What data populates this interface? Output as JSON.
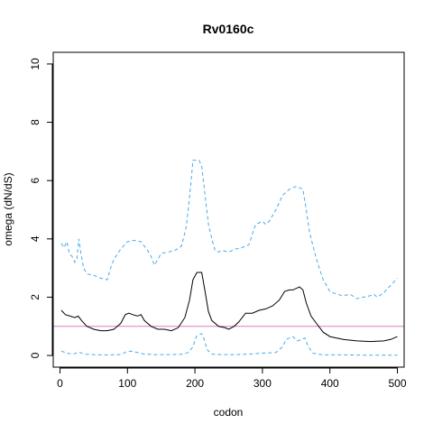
{
  "chart_data": {
    "type": "line",
    "title": "Rv0160c",
    "xlabel": "codon",
    "ylabel": "omega (dN/dS)",
    "xlim": [
      -10,
      510
    ],
    "ylim": [
      -0.4,
      10.4
    ],
    "xticks": [
      0,
      100,
      200,
      300,
      400,
      500
    ],
    "xtick_labels": [
      "0",
      "100",
      "200",
      "300",
      "400",
      "500"
    ],
    "yticks": [
      0,
      2,
      4,
      6,
      8,
      10
    ],
    "ytick_labels": [
      "0",
      "2",
      "4",
      "6",
      "8",
      "10"
    ],
    "grid": false,
    "reference_line": {
      "y": 1,
      "color": "#d87bc0"
    },
    "series": [
      {
        "role": "upper",
        "color": "#4ba9e8",
        "dash": true,
        "points": [
          [
            2,
            3.85
          ],
          [
            6,
            3.7
          ],
          [
            10,
            3.9
          ],
          [
            14,
            3.5
          ],
          [
            18,
            3.4
          ],
          [
            22,
            3.2
          ],
          [
            25,
            3.3
          ],
          [
            28,
            4.0
          ],
          [
            31,
            3.5
          ],
          [
            35,
            3.0
          ],
          [
            40,
            2.8
          ],
          [
            50,
            2.75
          ],
          [
            60,
            2.65
          ],
          [
            70,
            2.6
          ],
          [
            75,
            3.0
          ],
          [
            80,
            3.3
          ],
          [
            90,
            3.65
          ],
          [
            100,
            3.9
          ],
          [
            110,
            3.95
          ],
          [
            120,
            3.9
          ],
          [
            130,
            3.6
          ],
          [
            135,
            3.4
          ],
          [
            140,
            3.1
          ],
          [
            145,
            3.3
          ],
          [
            150,
            3.5
          ],
          [
            160,
            3.55
          ],
          [
            170,
            3.6
          ],
          [
            180,
            3.75
          ],
          [
            187,
            4.4
          ],
          [
            192,
            5.4
          ],
          [
            197,
            6.7
          ],
          [
            206,
            6.7
          ],
          [
            210,
            6.5
          ],
          [
            215,
            5.5
          ],
          [
            220,
            4.5
          ],
          [
            225,
            4.0
          ],
          [
            230,
            3.6
          ],
          [
            235,
            3.55
          ],
          [
            240,
            3.6
          ],
          [
            250,
            3.55
          ],
          [
            260,
            3.65
          ],
          [
            270,
            3.7
          ],
          [
            280,
            3.8
          ],
          [
            290,
            4.5
          ],
          [
            300,
            4.6
          ],
          [
            305,
            4.5
          ],
          [
            310,
            4.6
          ],
          [
            320,
            5.0
          ],
          [
            330,
            5.5
          ],
          [
            340,
            5.7
          ],
          [
            350,
            5.8
          ],
          [
            360,
            5.7
          ],
          [
            365,
            5.0
          ],
          [
            370,
            4.2
          ],
          [
            380,
            3.3
          ],
          [
            390,
            2.6
          ],
          [
            400,
            2.2
          ],
          [
            410,
            2.1
          ],
          [
            420,
            2.05
          ],
          [
            430,
            2.1
          ],
          [
            440,
            1.95
          ],
          [
            450,
            2.0
          ],
          [
            460,
            2.05
          ],
          [
            465,
            2.1
          ],
          [
            470,
            2.0
          ],
          [
            480,
            2.15
          ],
          [
            485,
            2.3
          ],
          [
            490,
            2.4
          ],
          [
            500,
            2.65
          ]
        ]
      },
      {
        "role": "estimate",
        "color": "#000000",
        "dash": false,
        "points": [
          [
            2,
            1.55
          ],
          [
            8,
            1.4
          ],
          [
            15,
            1.35
          ],
          [
            22,
            1.3
          ],
          [
            27,
            1.35
          ],
          [
            32,
            1.2
          ],
          [
            40,
            1.0
          ],
          [
            50,
            0.9
          ],
          [
            60,
            0.85
          ],
          [
            70,
            0.85
          ],
          [
            80,
            0.9
          ],
          [
            90,
            1.1
          ],
          [
            97,
            1.4
          ],
          [
            102,
            1.45
          ],
          [
            108,
            1.4
          ],
          [
            115,
            1.35
          ],
          [
            120,
            1.4
          ],
          [
            125,
            1.2
          ],
          [
            135,
            1.0
          ],
          [
            145,
            0.9
          ],
          [
            155,
            0.9
          ],
          [
            165,
            0.85
          ],
          [
            175,
            0.95
          ],
          [
            185,
            1.3
          ],
          [
            192,
            1.9
          ],
          [
            197,
            2.6
          ],
          [
            203,
            2.85
          ],
          [
            210,
            2.85
          ],
          [
            215,
            2.2
          ],
          [
            220,
            1.5
          ],
          [
            225,
            1.2
          ],
          [
            235,
            1.0
          ],
          [
            245,
            0.95
          ],
          [
            250,
            0.9
          ],
          [
            258,
            1.0
          ],
          [
            265,
            1.15
          ],
          [
            275,
            1.45
          ],
          [
            285,
            1.45
          ],
          [
            295,
            1.55
          ],
          [
            305,
            1.6
          ],
          [
            315,
            1.7
          ],
          [
            325,
            1.9
          ],
          [
            333,
            2.2
          ],
          [
            340,
            2.25
          ],
          [
            345,
            2.25
          ],
          [
            355,
            2.35
          ],
          [
            360,
            2.25
          ],
          [
            365,
            1.8
          ],
          [
            372,
            1.35
          ],
          [
            380,
            1.1
          ],
          [
            390,
            0.8
          ],
          [
            400,
            0.65
          ],
          [
            410,
            0.6
          ],
          [
            420,
            0.55
          ],
          [
            440,
            0.5
          ],
          [
            460,
            0.48
          ],
          [
            480,
            0.5
          ],
          [
            490,
            0.55
          ],
          [
            500,
            0.65
          ]
        ]
      },
      {
        "role": "lower",
        "color": "#4ba9e8",
        "dash": true,
        "points": [
          [
            2,
            0.15
          ],
          [
            10,
            0.08
          ],
          [
            20,
            0.05
          ],
          [
            28,
            0.12
          ],
          [
            35,
            0.05
          ],
          [
            50,
            0.03
          ],
          [
            70,
            0.02
          ],
          [
            90,
            0.03
          ],
          [
            98,
            0.12
          ],
          [
            105,
            0.15
          ],
          [
            115,
            0.1
          ],
          [
            125,
            0.05
          ],
          [
            140,
            0.03
          ],
          [
            160,
            0.03
          ],
          [
            180,
            0.04
          ],
          [
            190,
            0.1
          ],
          [
            197,
            0.3
          ],
          [
            202,
            0.65
          ],
          [
            210,
            0.75
          ],
          [
            213,
            0.6
          ],
          [
            218,
            0.2
          ],
          [
            225,
            0.05
          ],
          [
            240,
            0.03
          ],
          [
            260,
            0.03
          ],
          [
            280,
            0.05
          ],
          [
            300,
            0.08
          ],
          [
            320,
            0.1
          ],
          [
            330,
            0.3
          ],
          [
            335,
            0.55
          ],
          [
            345,
            0.65
          ],
          [
            352,
            0.5
          ],
          [
            358,
            0.55
          ],
          [
            363,
            0.6
          ],
          [
            368,
            0.3
          ],
          [
            375,
            0.08
          ],
          [
            390,
            0.02
          ],
          [
            420,
            0.02
          ],
          [
            460,
            0.01
          ],
          [
            500,
            0.01
          ]
        ]
      }
    ]
  }
}
